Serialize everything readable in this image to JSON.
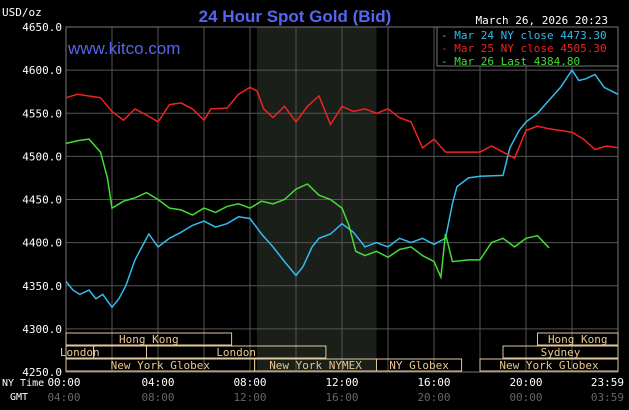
{
  "chart_data": {
    "type": "line",
    "title": "24 Hour Spot Gold (Bid)",
    "watermark": "www.kitco.com",
    "timestamp": "March 26, 2026 20:23",
    "ylabel": "USD/oz",
    "ylim": [
      4250,
      4650
    ],
    "yticks": [
      "4650.0",
      "4600.0",
      "4550.0",
      "4500.0",
      "4450.0",
      "4400.0",
      "4350.0",
      "4300.0",
      "4250.0"
    ],
    "ytick_values": [
      4650,
      4600,
      4550,
      4500,
      4450,
      4400,
      4350,
      4300,
      4250
    ],
    "xlim": [
      0,
      24
    ],
    "x_row_label_ny": "NY Time",
    "x_row_label_gmt": "GMT",
    "xticks": [
      {
        "h": 0,
        "ny": "00:00",
        "gmt": "04:00"
      },
      {
        "h": 4,
        "ny": "04:00",
        "gmt": "08:00"
      },
      {
        "h": 8,
        "ny": "08:00",
        "gmt": "12:00"
      },
      {
        "h": 12,
        "ny": "12:00",
        "gmt": "16:00"
      },
      {
        "h": 16,
        "ny": "16:00",
        "gmt": "20:00"
      },
      {
        "h": 20,
        "ny": "20:00",
        "gmt": "00:00"
      },
      {
        "h": 24,
        "ny": "23:59",
        "gmt": "03:59"
      }
    ],
    "shaded_hours": [
      8.3,
      13.5
    ],
    "sessions": [
      {
        "label": "Hong Kong",
        "row": 0,
        "start": 0,
        "end": 7.2
      },
      {
        "label": "Hong Kong",
        "row": 0,
        "start": 20.5,
        "end": 24
      },
      {
        "label": "London",
        "row": 1,
        "start": 0,
        "end": 1.2
      },
      {
        "label": "",
        "row": 1,
        "start": 1.2,
        "end": 3.5
      },
      {
        "label": "London",
        "row": 1,
        "start": 3.5,
        "end": 11.3
      },
      {
        "label": "Sydney",
        "row": 1,
        "start": 19,
        "end": 24
      },
      {
        "label": "New York Globex",
        "row": 2,
        "start": 0,
        "end": 8.2
      },
      {
        "label": "New York NYMEX",
        "row": 2,
        "start": 8.2,
        "end": 13.5
      },
      {
        "label": "NY Globex",
        "row": 2,
        "start": 13.5,
        "end": 17.2
      },
      {
        "label": "New York Globex",
        "row": 2,
        "start": 18,
        "end": 24
      }
    ],
    "series": [
      {
        "name": "Mar 24 NY close",
        "value": "4473.30",
        "color": "#33bbee",
        "points": [
          [
            0,
            4355
          ],
          [
            0.3,
            4345
          ],
          [
            0.6,
            4340
          ],
          [
            1,
            4345
          ],
          [
            1.3,
            4335
          ],
          [
            1.6,
            4340
          ],
          [
            2,
            4325
          ],
          [
            2.3,
            4335
          ],
          [
            2.6,
            4350
          ],
          [
            3,
            4380
          ],
          [
            3.3,
            4395
          ],
          [
            3.6,
            4410
          ],
          [
            4,
            4395
          ],
          [
            4.5,
            4405
          ],
          [
            5,
            4412
          ],
          [
            5.5,
            4420
          ],
          [
            6,
            4425
          ],
          [
            6.5,
            4418
          ],
          [
            7,
            4422
          ],
          [
            7.5,
            4430
          ],
          [
            8,
            4428
          ],
          [
            8.5,
            4410
          ],
          [
            9,
            4395
          ],
          [
            9.5,
            4378
          ],
          [
            10,
            4362
          ],
          [
            10.3,
            4372
          ],
          [
            10.7,
            4395
          ],
          [
            11,
            4405
          ],
          [
            11.5,
            4410
          ],
          [
            12,
            4422
          ],
          [
            12.5,
            4412
          ],
          [
            13,
            4395
          ],
          [
            13.5,
            4400
          ],
          [
            14,
            4395
          ],
          [
            14.5,
            4405
          ],
          [
            15,
            4400
          ],
          [
            15.5,
            4405
          ],
          [
            16,
            4398
          ],
          [
            16.5,
            4405
          ],
          [
            16.8,
            4445
          ],
          [
            17,
            4465
          ],
          [
            17.5,
            4475
          ],
          [
            18,
            4477
          ],
          [
            19,
            4478
          ],
          [
            19.3,
            4510
          ],
          [
            19.7,
            4530
          ],
          [
            20,
            4540
          ],
          [
            20.5,
            4550
          ],
          [
            21,
            4565
          ],
          [
            21.5,
            4580
          ],
          [
            22,
            4600
          ],
          [
            22.3,
            4588
          ],
          [
            22.6,
            4590
          ],
          [
            23,
            4595
          ],
          [
            23.4,
            4580
          ],
          [
            24,
            4572
          ]
        ]
      },
      {
        "name": "Mar 25 NY close",
        "value": "4505.30",
        "color": "#ee2222",
        "points": [
          [
            0,
            4568
          ],
          [
            0.5,
            4572
          ],
          [
            1,
            4570
          ],
          [
            1.5,
            4568
          ],
          [
            2,
            4552
          ],
          [
            2.5,
            4542
          ],
          [
            3,
            4555
          ],
          [
            3.5,
            4548
          ],
          [
            4,
            4540
          ],
          [
            4.5,
            4560
          ],
          [
            5,
            4562
          ],
          [
            5.5,
            4555
          ],
          [
            6,
            4542
          ],
          [
            6.3,
            4555
          ],
          [
            7,
            4556
          ],
          [
            7.5,
            4572
          ],
          [
            8,
            4580
          ],
          [
            8.3,
            4576
          ],
          [
            8.6,
            4555
          ],
          [
            9,
            4545
          ],
          [
            9.5,
            4558
          ],
          [
            10,
            4540
          ],
          [
            10.5,
            4558
          ],
          [
            11,
            4570
          ],
          [
            11.5,
            4537
          ],
          [
            12,
            4558
          ],
          [
            12.5,
            4552
          ],
          [
            13,
            4555
          ],
          [
            13.5,
            4550
          ],
          [
            14,
            4555
          ],
          [
            14.5,
            4545
          ],
          [
            15,
            4540
          ],
          [
            15.5,
            4510
          ],
          [
            16,
            4520
          ],
          [
            16.5,
            4505
          ],
          [
            17,
            4505
          ],
          [
            17.5,
            4505
          ],
          [
            18,
            4505
          ],
          [
            18.5,
            4512
          ],
          [
            19,
            4505
          ],
          [
            19.5,
            4498
          ],
          [
            20,
            4530
          ],
          [
            20.5,
            4535
          ],
          [
            21,
            4532
          ],
          [
            22,
            4528
          ],
          [
            22.5,
            4520
          ],
          [
            23,
            4508
          ],
          [
            23.5,
            4512
          ],
          [
            24,
            4510
          ]
        ]
      },
      {
        "name": "Mar 26 Last",
        "value": "4384.80",
        "color": "#44dd33",
        "points": [
          [
            0,
            4515
          ],
          [
            0.5,
            4518
          ],
          [
            1,
            4520
          ],
          [
            1.5,
            4505
          ],
          [
            1.8,
            4475
          ],
          [
            2,
            4440
          ],
          [
            2.5,
            4448
          ],
          [
            3,
            4452
          ],
          [
            3.5,
            4458
          ],
          [
            4,
            4450
          ],
          [
            4.5,
            4440
          ],
          [
            5,
            4438
          ],
          [
            5.5,
            4432
          ],
          [
            6,
            4440
          ],
          [
            6.5,
            4435
          ],
          [
            7,
            4442
          ],
          [
            7.5,
            4445
          ],
          [
            8,
            4440
          ],
          [
            8.5,
            4448
          ],
          [
            9,
            4445
          ],
          [
            9.5,
            4450
          ],
          [
            10,
            4462
          ],
          [
            10.5,
            4468
          ],
          [
            11,
            4455
          ],
          [
            11.5,
            4450
          ],
          [
            12,
            4440
          ],
          [
            12.3,
            4420
          ],
          [
            12.6,
            4390
          ],
          [
            13,
            4385
          ],
          [
            13.5,
            4390
          ],
          [
            14,
            4383
          ],
          [
            14.5,
            4392
          ],
          [
            15,
            4395
          ],
          [
            15.5,
            4385
          ],
          [
            16,
            4378
          ],
          [
            16.3,
            4360
          ],
          [
            16.5,
            4410
          ],
          [
            16.8,
            4378
          ],
          [
            17.5,
            4380
          ],
          [
            18,
            4380
          ],
          [
            18.5,
            4400
          ],
          [
            19,
            4405
          ],
          [
            19.5,
            4395
          ],
          [
            20,
            4405
          ],
          [
            20.5,
            4408
          ],
          [
            21,
            4394
          ]
        ]
      }
    ]
  }
}
